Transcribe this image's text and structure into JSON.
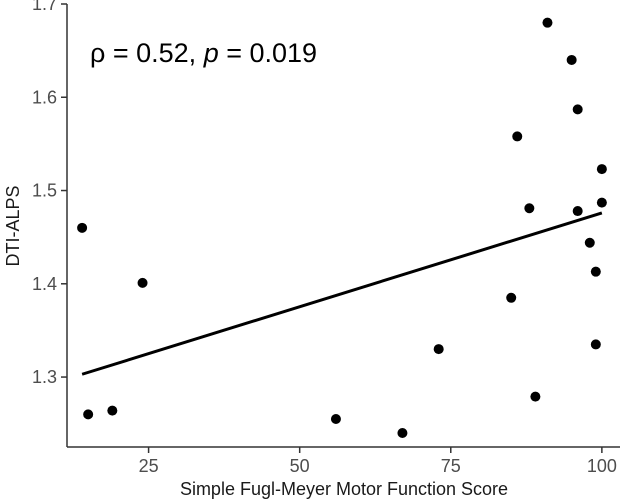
{
  "chart_data": {
    "type": "scatter",
    "title": "",
    "xlabel": "Simple Fugl-Meyer Motor Function Score",
    "ylabel": "DTI-ALPS",
    "xlim": [
      11.5,
      103
    ],
    "ylim": [
      1.225,
      1.7
    ],
    "x_ticks": [
      25,
      50,
      75,
      100
    ],
    "y_ticks": [
      1.3,
      1.4,
      1.5,
      1.6,
      1.7
    ],
    "x_tick_labels": [
      "25",
      "50",
      "75",
      "100"
    ],
    "y_tick_labels": [
      "1.3",
      "1.4",
      "1.5",
      "1.6",
      "1.7"
    ],
    "grid": false,
    "points": [
      {
        "x": 14,
        "y": 1.46
      },
      {
        "x": 15,
        "y": 1.26
      },
      {
        "x": 19,
        "y": 1.264
      },
      {
        "x": 24,
        "y": 1.401
      },
      {
        "x": 56,
        "y": 1.255
      },
      {
        "x": 67,
        "y": 1.24
      },
      {
        "x": 73,
        "y": 1.33
      },
      {
        "x": 85,
        "y": 1.385
      },
      {
        "x": 86,
        "y": 1.558
      },
      {
        "x": 88,
        "y": 1.481
      },
      {
        "x": 89,
        "y": 1.279
      },
      {
        "x": 91,
        "y": 1.68
      },
      {
        "x": 95,
        "y": 1.64
      },
      {
        "x": 96,
        "y": 1.587
      },
      {
        "x": 96,
        "y": 1.478
      },
      {
        "x": 98,
        "y": 1.444
      },
      {
        "x": 99,
        "y": 1.413
      },
      {
        "x": 99,
        "y": 1.335
      },
      {
        "x": 100,
        "y": 1.523
      },
      {
        "x": 100,
        "y": 1.487
      }
    ],
    "trend_line": {
      "x": [
        14,
        100
      ],
      "y": [
        1.303,
        1.476
      ]
    },
    "annotation": {
      "rho_text": "ρ = 0.52, ",
      "p_symbol": "p",
      "p_text": " = 0.019"
    },
    "colors": {
      "points": "#000000",
      "line": "#000000",
      "axis": "#333333"
    }
  }
}
